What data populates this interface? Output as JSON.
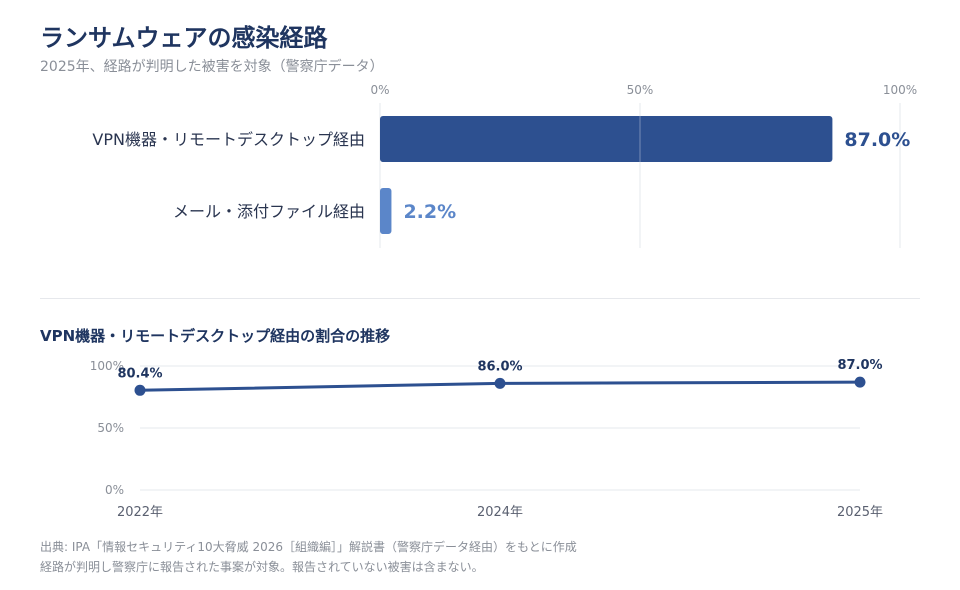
{
  "title": "ランサムウェアの感染経路",
  "subtitle": "2025年、経路が判明した被害を対象（警察庁データ）",
  "colors": {
    "primary": "#2d5090",
    "secondary": "#5b86c9",
    "grid": "#e6e8ec",
    "axis_text": "#8a8f98",
    "dark_text": "#1f3560"
  },
  "chart_data": [
    {
      "type": "bar",
      "orientation": "horizontal",
      "categories": [
        "VPN機器・リモートデスクトップ経由",
        "メール・添付ファイル経由"
      ],
      "values": [
        87.0,
        2.2
      ],
      "value_labels": [
        "87.0%",
        "2.2%"
      ],
      "xlim": [
        0,
        100
      ],
      "xticks": [
        0,
        50,
        100
      ],
      "xtick_labels": [
        "0%",
        "50%",
        "100%"
      ],
      "unit": "%",
      "grid": true
    },
    {
      "type": "line",
      "title": "VPN機器・リモートデスクトップ経由の割合の推移",
      "x": [
        "2022年",
        "2024年",
        "2025年"
      ],
      "series": [
        {
          "values": [
            80.4,
            86.0,
            87.0
          ],
          "value_labels": [
            "80.4%",
            "86.0%",
            "87.0%"
          ]
        }
      ],
      "ylim": [
        0,
        100
      ],
      "yticks": [
        0,
        50,
        100
      ],
      "ytick_labels": [
        "0%",
        "50%",
        "100%"
      ],
      "grid": true
    }
  ],
  "footnotes": [
    "出典: IPA「情報セキュリティ10大脅威 2026［組織編］」解説書（警察庁データ経由）をもとに作成",
    "経路が判明し警察庁に報告された事案が対象。報告されていない被害は含まない。"
  ]
}
